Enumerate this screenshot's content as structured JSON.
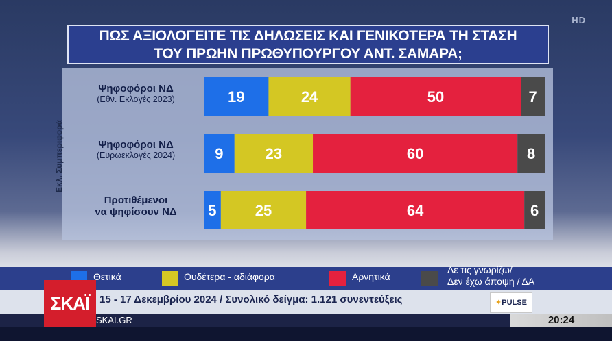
{
  "overlay": {
    "hd": "HD"
  },
  "title": {
    "line1": "ΠΩΣ ΑΞΙΟΛΟΓΕΙΤΕ ΤΙΣ ΔΗΛΩΣΕΙΣ ΚΑΙ ΓΕΝΙΚΟΤΕΡΑ ΤΗ ΣΤΑΣΗ",
    "line2": "ΤΟΥ ΠΡΩΗΝ ΠΡΩΘΥΠΟΥΡΓΟΥ ΑΝΤ. ΣΑΜΑΡΑ;"
  },
  "vertical_label": "Εκλ. Συμπεριφορά",
  "rows": [
    {
      "l1": "Ψηφοφόροι ΝΔ",
      "l2": "(Εθν. Εκλογές 2023)"
    },
    {
      "l1": "Ψηφοφόροι ΝΔ",
      "l2": "(Ευρωεκλογές 2024)"
    },
    {
      "l1": "Προτιθέμενοι",
      "l2": "να ψηφίσουν ΝΔ"
    }
  ],
  "legend": [
    {
      "label": "Θετικά"
    },
    {
      "label": "Ουδέτερα - αδιάφορα"
    },
    {
      "label": "Αρνητικά"
    },
    {
      "label1": "Δε τις γνωρίζω/",
      "label2": "Δεν έχω άποψη / ΔΑ"
    }
  ],
  "colors": {
    "positive": "#1e6fe8",
    "neutral": "#d4c723",
    "negative": "#e4213e",
    "dk": "#4a4a4a"
  },
  "ticker": {
    "text": "15 - 17 Δεκεμβρίου 2024 / Συνολικό δείγμα: 1.121 συνεντεύξεις",
    "pulse": "PULSE"
  },
  "footer": {
    "url": "SKAI.GR",
    "time": "20:24",
    "logo": "ΣΚΑΪ"
  },
  "chart_data": {
    "type": "bar",
    "orientation": "horizontal",
    "stacked": true,
    "title": "ΠΩΣ ΑΞΙΟΛΟΓΕΙΤΕ ΤΙΣ ΔΗΛΩΣΕΙΣ ΚΑΙ ΓΕΝΙΚΟΤΕΡΑ ΤΗ ΣΤΑΣΗ ΤΟΥ ΠΡΩΗΝ ΠΡΩΘΥΠΟΥΡΓΟΥ ΑΝΤ. ΣΑΜΑΡΑ;",
    "categories": [
      "Ψηφοφόροι ΝΔ (Εθν. Εκλογές 2023)",
      "Ψηφοφόροι ΝΔ (Ευρωεκλογές 2024)",
      "Προτιθέμενοι να ψηφίσουν ΝΔ"
    ],
    "series": [
      {
        "name": "Θετικά",
        "values": [
          19,
          9,
          5
        ]
      },
      {
        "name": "Ουδέτερα - αδιάφορα",
        "values": [
          24,
          23,
          25
        ]
      },
      {
        "name": "Αρνητικά",
        "values": [
          50,
          60,
          64
        ]
      },
      {
        "name": "Δε τις γνωρίζω/ Δεν έχω άποψη / ΔΑ",
        "values": [
          7,
          8,
          6
        ]
      }
    ],
    "ylim": [
      0,
      100
    ],
    "legend": "bottom"
  }
}
